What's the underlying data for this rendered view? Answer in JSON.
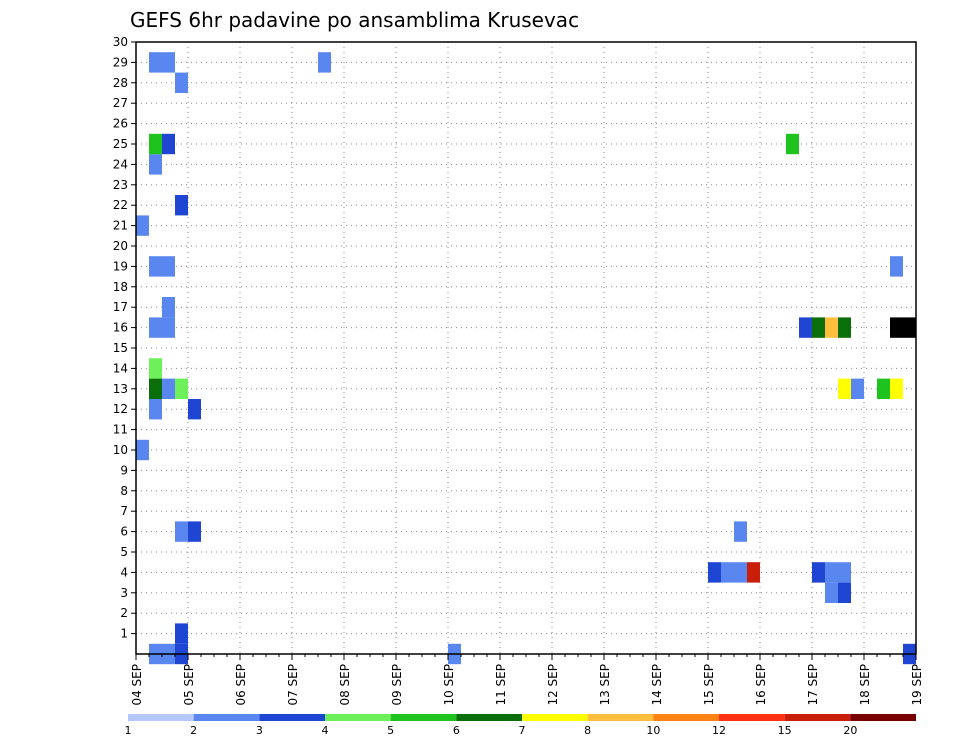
{
  "chart_data": {
    "type": "heatmap",
    "title": "GEFS 6hr padavine po ansamblima Krusevac",
    "xlabel": "",
    "ylabel": "",
    "y_ticks": [
      "1",
      "2",
      "3",
      "4",
      "5",
      "6",
      "7",
      "8",
      "9",
      "10",
      "11",
      "12",
      "13",
      "14",
      "15",
      "16",
      "17",
      "18",
      "19",
      "20",
      "21",
      "22",
      "23",
      "24",
      "25",
      "26",
      "27",
      "28",
      "29",
      "30"
    ],
    "x_ticks": [
      "04 SEP",
      "05 SEP",
      "06 SEP",
      "07 SEP",
      "08 SEP",
      "09 SEP",
      "10 SEP",
      "11 SEP",
      "12 SEP",
      "13 SEP",
      "14 SEP",
      "15 SEP",
      "16 SEP",
      "17 SEP",
      "18 SEP",
      "19 SEP"
    ],
    "x_start": "04 SEP 00Z",
    "time_step_hours": 6,
    "grid": "dotted",
    "legend": {
      "position": "bottom",
      "labels": [
        "1",
        "2",
        "3",
        "4",
        "5",
        "6",
        "7",
        "8",
        "10",
        "12",
        "15",
        "20"
      ],
      "colors": [
        "#b4c8ff",
        "#5a87ef",
        "#1e46d2",
        "#6ef05a",
        "#1ec31e",
        "#0a6e0a",
        "#ffff00",
        "#ffbe3c",
        "#ff8214",
        "#ff3214",
        "#c81e0a",
        "#780000"
      ]
    },
    "cells": [
      {
        "member": 0,
        "step": 1,
        "level": 1
      },
      {
        "member": 0,
        "step": 2,
        "level": 1
      },
      {
        "member": 0,
        "step": 3,
        "level": 2
      },
      {
        "member": 0,
        "step": 24,
        "level": 1
      },
      {
        "member": 0,
        "step": 59,
        "level": 2
      },
      {
        "member": 1,
        "step": 3,
        "level": 2
      },
      {
        "member": 4,
        "step": 44,
        "level": 2
      },
      {
        "member": 4,
        "step": 45,
        "level": 1
      },
      {
        "member": 4,
        "step": 46,
        "level": 1
      },
      {
        "member": 4,
        "step": 47,
        "level": 10
      },
      {
        "member": 4,
        "step": 52,
        "level": 2
      },
      {
        "member": 4,
        "step": 53,
        "level": 1
      },
      {
        "member": 4,
        "step": 54,
        "level": 1
      },
      {
        "member": 3,
        "step": 53,
        "level": 1
      },
      {
        "member": 3,
        "step": 54,
        "level": 2
      },
      {
        "member": 6,
        "step": 3,
        "level": 1
      },
      {
        "member": 6,
        "step": 4,
        "level": 2
      },
      {
        "member": 6,
        "step": 46,
        "level": 1
      },
      {
        "member": 10,
        "step": 0,
        "level": 1
      },
      {
        "member": 12,
        "step": 1,
        "level": 1
      },
      {
        "member": 12,
        "step": 4,
        "level": 2
      },
      {
        "member": 13,
        "step": 1,
        "level": 5
      },
      {
        "member": 13,
        "step": 2,
        "level": 1
      },
      {
        "member": 13,
        "step": 3,
        "level": 3
      },
      {
        "member": 13,
        "step": 54,
        "level": 6
      },
      {
        "member": 13,
        "step": 55,
        "level": 1
      },
      {
        "member": 13,
        "step": 57,
        "level": 4
      },
      {
        "member": 13,
        "step": 58,
        "level": 6
      },
      {
        "member": 14,
        "step": 1,
        "level": 3
      },
      {
        "member": 16,
        "step": 1,
        "level": 1
      },
      {
        "member": 16,
        "step": 2,
        "level": 1
      },
      {
        "member": 16,
        "step": 51,
        "level": 2
      },
      {
        "member": 16,
        "step": 52,
        "level": 5
      },
      {
        "member": 16,
        "step": 53,
        "level": 7
      },
      {
        "member": 16,
        "step": 54,
        "level": 5
      },
      {
        "member": 16,
        "step": 58,
        "level": 12
      },
      {
        "member": 16,
        "step": 59,
        "level": 12
      },
      {
        "member": 17,
        "step": 2,
        "level": 1
      },
      {
        "member": 19,
        "step": 1,
        "level": 1
      },
      {
        "member": 19,
        "step": 2,
        "level": 1
      },
      {
        "member": 19,
        "step": 58,
        "level": 1
      },
      {
        "member": 21,
        "step": 0,
        "level": 1
      },
      {
        "member": 22,
        "step": 3,
        "level": 2
      },
      {
        "member": 24,
        "step": 1,
        "level": 1
      },
      {
        "member": 25,
        "step": 1,
        "level": 4
      },
      {
        "member": 25,
        "step": 2,
        "level": 2
      },
      {
        "member": 25,
        "step": 50,
        "level": 4
      },
      {
        "member": 28,
        "step": 3,
        "level": 1
      },
      {
        "member": 29,
        "step": 1,
        "level": 1
      },
      {
        "member": 29,
        "step": 2,
        "level": 1
      },
      {
        "member": 29,
        "step": 14,
        "level": 1
      }
    ]
  }
}
